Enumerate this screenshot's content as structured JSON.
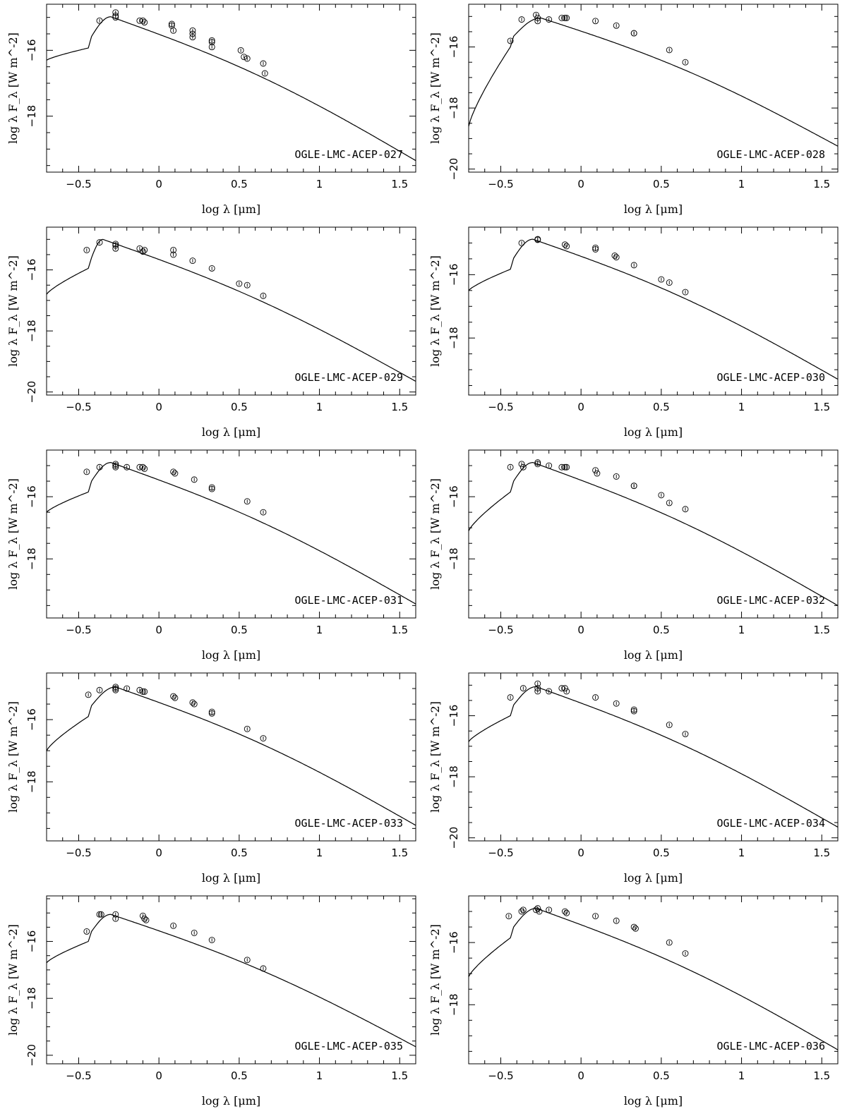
{
  "chart_data": [
    {
      "type": "line",
      "star": "OGLE-LMC-ACEP-027",
      "xlabel": "log λ [μm]",
      "ylabel": "log λ F_λ [W m^-2]",
      "xlim": [
        -0.7,
        1.6
      ],
      "ylim": [
        -19.7,
        -14.6
      ],
      "yticks": [
        -18,
        -16
      ],
      "xticks": [
        -0.5,
        0,
        0.5,
        1,
        1.5
      ],
      "xtick_labels": [
        "−0.5",
        "0",
        "0.5",
        "1",
        "1.5"
      ],
      "model": {
        "peak_x": -0.3,
        "peak_y": -14.98,
        "end_y": -19.35,
        "base_y": -16.3
      },
      "points": [
        [
          -0.37,
          -15.1
        ],
        [
          -0.27,
          -14.95
        ],
        [
          -0.27,
          -14.85
        ],
        [
          -0.27,
          -15.0
        ],
        [
          -0.12,
          -15.1
        ],
        [
          -0.1,
          -15.1
        ],
        [
          -0.09,
          -15.15
        ],
        [
          0.08,
          -15.2
        ],
        [
          0.08,
          -15.25
        ],
        [
          0.09,
          -15.4
        ],
        [
          0.21,
          -15.4
        ],
        [
          0.21,
          -15.5
        ],
        [
          0.21,
          -15.6
        ],
        [
          0.33,
          -15.7
        ],
        [
          0.33,
          -15.75
        ],
        [
          0.33,
          -15.9
        ],
        [
          0.51,
          -16.0
        ],
        [
          0.53,
          -16.2
        ],
        [
          0.55,
          -16.25
        ],
        [
          0.65,
          -16.4
        ],
        [
          0.66,
          -16.7
        ]
      ]
    },
    {
      "type": "line",
      "star": "OGLE-LMC-ACEP-028",
      "xlabel": "log λ [μm]",
      "ylabel": "log λ F_λ [W m^-2]",
      "xlim": [
        -0.7,
        1.6
      ],
      "ylim": [
        -20.1,
        -14.6
      ],
      "yticks": [
        -20,
        -18,
        -16
      ],
      "xticks": [
        -0.5,
        0,
        0.5,
        1,
        1.5
      ],
      "xtick_labels": [
        "−0.5",
        "0",
        "0.5",
        "1",
        "1.5"
      ],
      "model": {
        "peak_x": -0.25,
        "peak_y": -15.05,
        "end_y": -19.25,
        "base_y": -18.6
      },
      "points": [
        [
          -0.44,
          -15.8
        ],
        [
          -0.37,
          -15.1
        ],
        [
          -0.28,
          -14.95
        ],
        [
          -0.27,
          -15.05
        ],
        [
          -0.27,
          -15.15
        ],
        [
          -0.2,
          -15.1
        ],
        [
          -0.12,
          -15.05
        ],
        [
          -0.1,
          -15.05
        ],
        [
          -0.09,
          -15.05
        ],
        [
          0.09,
          -15.15
        ],
        [
          0.22,
          -15.3
        ],
        [
          0.33,
          -15.55
        ],
        [
          0.33,
          -15.55
        ],
        [
          0.55,
          -16.1
        ],
        [
          0.65,
          -16.5
        ]
      ]
    },
    {
      "type": "line",
      "star": "OGLE-LMC-ACEP-029",
      "xlabel": "log λ [μm]",
      "ylabel": "log λ F_λ [W m^-2]",
      "xlim": [
        -0.7,
        1.6
      ],
      "ylim": [
        -20.1,
        -14.6
      ],
      "yticks": [
        -20,
        -18,
        -16
      ],
      "xticks": [
        -0.5,
        0,
        0.5,
        1,
        1.5
      ],
      "xtick_labels": [
        "−0.5",
        "0",
        "0.5",
        "1",
        "1.5"
      ],
      "model": {
        "peak_x": -0.35,
        "peak_y": -15.0,
        "end_y": -19.65,
        "base_y": -16.8
      },
      "points": [
        [
          -0.45,
          -15.35
        ],
        [
          -0.37,
          -15.1
        ],
        [
          -0.27,
          -15.15
        ],
        [
          -0.27,
          -15.2
        ],
        [
          -0.27,
          -15.3
        ],
        [
          -0.12,
          -15.3
        ],
        [
          -0.1,
          -15.4
        ],
        [
          -0.09,
          -15.35
        ],
        [
          0.09,
          -15.35
        ],
        [
          0.09,
          -15.5
        ],
        [
          0.21,
          -15.7
        ],
        [
          0.33,
          -15.95
        ],
        [
          0.5,
          -16.45
        ],
        [
          0.55,
          -16.5
        ],
        [
          0.65,
          -16.85
        ]
      ]
    },
    {
      "type": "line",
      "star": "OGLE-LMC-ACEP-030",
      "xlabel": "log λ [μm]",
      "ylabel": "log λ F_λ [W m^-2]",
      "xlim": [
        -0.7,
        1.6
      ],
      "ylim": [
        -19.8,
        -14.5
      ],
      "yticks": [
        -18,
        -16
      ],
      "xticks": [
        -0.5,
        0,
        0.5,
        1,
        1.5
      ],
      "xtick_labels": [
        "−0.5",
        "0",
        "0.5",
        "1",
        "1.5"
      ],
      "model": {
        "peak_x": -0.3,
        "peak_y": -14.88,
        "end_y": -19.3,
        "base_y": -16.5
      },
      "points": [
        [
          -0.37,
          -15.0
        ],
        [
          -0.27,
          -14.88
        ],
        [
          -0.27,
          -14.9
        ],
        [
          -0.1,
          -15.05
        ],
        [
          -0.09,
          -15.1
        ],
        [
          0.09,
          -15.15
        ],
        [
          0.09,
          -15.2
        ],
        [
          0.21,
          -15.4
        ],
        [
          0.22,
          -15.45
        ],
        [
          0.33,
          -15.7
        ],
        [
          0.5,
          -16.15
        ],
        [
          0.55,
          -16.25
        ],
        [
          0.65,
          -16.55
        ]
      ]
    },
    {
      "type": "line",
      "star": "OGLE-LMC-ACEP-031",
      "xlabel": "log λ [μm]",
      "ylabel": "log λ F_λ [W m^-2]",
      "xlim": [
        -0.7,
        1.6
      ],
      "ylim": [
        -19.9,
        -14.5
      ],
      "yticks": [
        -18,
        -16
      ],
      "xticks": [
        -0.5,
        0,
        0.5,
        1,
        1.5
      ],
      "xtick_labels": [
        "−0.5",
        "0",
        "0.5",
        "1",
        "1.5"
      ],
      "model": {
        "peak_x": -0.3,
        "peak_y": -14.9,
        "end_y": -19.45,
        "base_y": -16.5
      },
      "points": [
        [
          -0.45,
          -15.2
        ],
        [
          -0.37,
          -15.05
        ],
        [
          -0.27,
          -14.95
        ],
        [
          -0.27,
          -15.0
        ],
        [
          -0.27,
          -15.05
        ],
        [
          -0.2,
          -15.05
        ],
        [
          -0.12,
          -15.05
        ],
        [
          -0.1,
          -15.05
        ],
        [
          -0.09,
          -15.1
        ],
        [
          0.09,
          -15.2
        ],
        [
          0.1,
          -15.25
        ],
        [
          0.22,
          -15.45
        ],
        [
          0.33,
          -15.7
        ],
        [
          0.33,
          -15.75
        ],
        [
          0.55,
          -16.15
        ],
        [
          0.65,
          -16.5
        ]
      ]
    },
    {
      "type": "line",
      "star": "OGLE-LMC-ACEP-032",
      "xlabel": "log λ [μm]",
      "ylabel": "log λ F_λ [W m^-2]",
      "xlim": [
        -0.7,
        1.6
      ],
      "ylim": [
        -19.9,
        -14.5
      ],
      "yticks": [
        -18,
        -16
      ],
      "xticks": [
        -0.5,
        0,
        0.5,
        1,
        1.5
      ],
      "xtick_labels": [
        "−0.5",
        "0",
        "0.5",
        "1",
        "1.5"
      ],
      "model": {
        "peak_x": -0.3,
        "peak_y": -14.9,
        "end_y": -19.5,
        "base_y": -17.1
      },
      "points": [
        [
          -0.44,
          -15.05
        ],
        [
          -0.37,
          -14.95
        ],
        [
          -0.36,
          -15.05
        ],
        [
          -0.27,
          -14.95
        ],
        [
          -0.27,
          -14.9
        ],
        [
          -0.2,
          -15.0
        ],
        [
          -0.12,
          -15.05
        ],
        [
          -0.1,
          -15.05
        ],
        [
          -0.09,
          -15.05
        ],
        [
          0.09,
          -15.15
        ],
        [
          0.1,
          -15.25
        ],
        [
          0.22,
          -15.35
        ],
        [
          0.33,
          -15.65
        ],
        [
          0.33,
          -15.65
        ],
        [
          0.5,
          -15.95
        ],
        [
          0.55,
          -16.2
        ],
        [
          0.65,
          -16.4
        ]
      ]
    },
    {
      "type": "line",
      "star": "OGLE-LMC-ACEP-033",
      "xlabel": "log λ [μm]",
      "ylabel": "log λ F_λ [W m^-2]",
      "xlim": [
        -0.7,
        1.6
      ],
      "ylim": [
        -19.9,
        -14.5
      ],
      "yticks": [
        -18,
        -16
      ],
      "xticks": [
        -0.5,
        0,
        0.5,
        1,
        1.5
      ],
      "xtick_labels": [
        "−0.5",
        "0",
        "0.5",
        "1",
        "1.5"
      ],
      "model": {
        "peak_x": -0.27,
        "peak_y": -14.95,
        "end_y": -19.4,
        "base_y": -17.0
      },
      "points": [
        [
          -0.44,
          -15.2
        ],
        [
          -0.37,
          -15.05
        ],
        [
          -0.27,
          -14.95
        ],
        [
          -0.27,
          -15.0
        ],
        [
          -0.27,
          -15.05
        ],
        [
          -0.2,
          -15.0
        ],
        [
          -0.12,
          -15.05
        ],
        [
          -0.1,
          -15.1
        ],
        [
          -0.09,
          -15.1
        ],
        [
          0.09,
          -15.25
        ],
        [
          0.1,
          -15.3
        ],
        [
          0.21,
          -15.45
        ],
        [
          0.22,
          -15.5
        ],
        [
          0.33,
          -15.75
        ],
        [
          0.33,
          -15.8
        ],
        [
          0.55,
          -16.3
        ],
        [
          0.65,
          -16.6
        ]
      ]
    },
    {
      "type": "line",
      "star": "OGLE-LMC-ACEP-034",
      "xlabel": "log λ [μm]",
      "ylabel": "log λ F_λ [W m^-2]",
      "xlim": [
        -0.7,
        1.6
      ],
      "ylim": [
        -20.1,
        -14.6
      ],
      "yticks": [
        -20,
        -18,
        -16
      ],
      "xticks": [
        -0.5,
        0,
        0.5,
        1,
        1.5
      ],
      "xtick_labels": [
        "−0.5",
        "0",
        "0.5",
        "1",
        "1.5"
      ],
      "model": {
        "peak_x": -0.28,
        "peak_y": -15.05,
        "end_y": -19.65,
        "base_y": -16.85
      },
      "points": [
        [
          -0.44,
          -15.4
        ],
        [
          -0.36,
          -15.1
        ],
        [
          -0.27,
          -14.95
        ],
        [
          -0.27,
          -15.1
        ],
        [
          -0.27,
          -15.2
        ],
        [
          -0.2,
          -15.2
        ],
        [
          -0.12,
          -15.1
        ],
        [
          -0.1,
          -15.1
        ],
        [
          -0.09,
          -15.2
        ],
        [
          0.09,
          -15.4
        ],
        [
          0.22,
          -15.6
        ],
        [
          0.33,
          -15.8
        ],
        [
          0.33,
          -15.85
        ],
        [
          0.55,
          -16.3
        ],
        [
          0.65,
          -16.6
        ]
      ]
    },
    {
      "type": "line",
      "star": "OGLE-LMC-ACEP-035",
      "xlabel": "log λ [μm]",
      "ylabel": "log λ F_λ [W m^-2]",
      "xlim": [
        -0.7,
        1.6
      ],
      "ylim": [
        -20.3,
        -14.4
      ],
      "yticks": [
        -20,
        -18,
        -16
      ],
      "xticks": [
        -0.5,
        0,
        0.5,
        1,
        1.5
      ],
      "xtick_labels": [
        "−0.5",
        "0",
        "0.5",
        "1",
        "1.5"
      ],
      "model": {
        "peak_x": -0.3,
        "peak_y": -15.05,
        "end_y": -19.7,
        "base_y": -16.75
      },
      "points": [
        [
          -0.45,
          -15.65
        ],
        [
          -0.37,
          -15.05
        ],
        [
          -0.36,
          -15.05
        ],
        [
          -0.27,
          -15.05
        ],
        [
          -0.27,
          -15.2
        ],
        [
          -0.1,
          -15.1
        ],
        [
          -0.09,
          -15.2
        ],
        [
          -0.08,
          -15.25
        ],
        [
          0.09,
          -15.45
        ],
        [
          0.22,
          -15.7
        ],
        [
          0.33,
          -15.95
        ],
        [
          0.55,
          -16.65
        ],
        [
          0.65,
          -16.95
        ]
      ]
    },
    {
      "type": "line",
      "star": "OGLE-LMC-ACEP-036",
      "xlabel": "log λ [μm]",
      "ylabel": "log λ F_λ [W m^-2]",
      "xlim": [
        -0.7,
        1.6
      ],
      "ylim": [
        -19.9,
        -14.5
      ],
      "yticks": [
        -18,
        -16
      ],
      "xticks": [
        -0.5,
        0,
        0.5,
        1,
        1.5
      ],
      "xtick_labels": [
        "−0.5",
        "0",
        "0.5",
        "1",
        "1.5"
      ],
      "model": {
        "peak_x": -0.28,
        "peak_y": -14.9,
        "end_y": -19.45,
        "base_y": -17.1
      },
      "points": [
        [
          -0.45,
          -15.15
        ],
        [
          -0.37,
          -15.0
        ],
        [
          -0.36,
          -14.95
        ],
        [
          -0.28,
          -14.95
        ],
        [
          -0.27,
          -14.9
        ],
        [
          -0.26,
          -15.0
        ],
        [
          -0.2,
          -14.95
        ],
        [
          -0.1,
          -15.0
        ],
        [
          -0.09,
          -15.05
        ],
        [
          0.09,
          -15.15
        ],
        [
          0.22,
          -15.3
        ],
        [
          0.33,
          -15.5
        ],
        [
          0.34,
          -15.55
        ],
        [
          0.55,
          -16.0
        ],
        [
          0.65,
          -16.35
        ]
      ]
    }
  ]
}
